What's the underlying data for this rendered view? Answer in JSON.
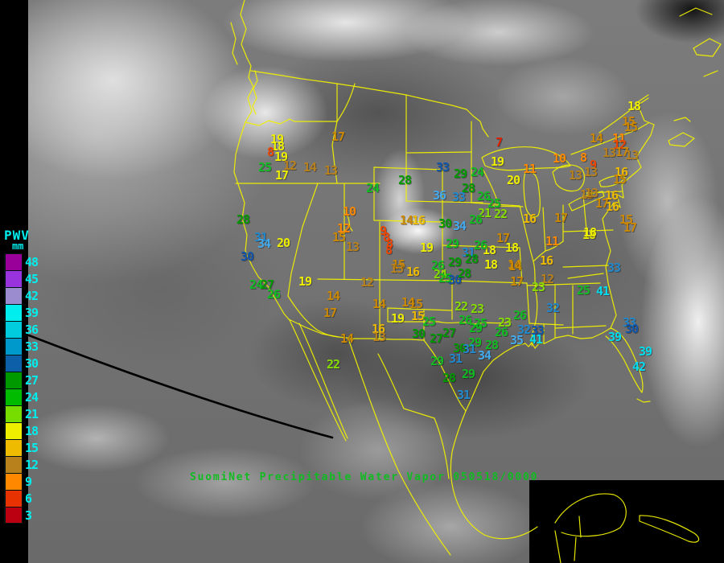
{
  "footer": {
    "title": "SuomiNet Precipitable Water Vapor 050518/0000"
  },
  "map": {
    "outline_color": "#F0F000",
    "limb_color": "#000000",
    "title_color": "#11BB22"
  },
  "legend": {
    "title": "PWV",
    "units": "mm",
    "text_color": "#00EEEE",
    "entries": [
      {
        "value": "48",
        "color": "#990099"
      },
      {
        "value": "45",
        "color": "#9933DD"
      },
      {
        "value": "42",
        "color": "#9A8CCE"
      },
      {
        "value": "39",
        "color": "#00EEEE"
      },
      {
        "value": "36",
        "color": "#00CCDD"
      },
      {
        "value": "33",
        "color": "#0099CC"
      },
      {
        "value": "30",
        "color": "#0D5FA8"
      },
      {
        "value": "27",
        "color": "#009900"
      },
      {
        "value": "24",
        "color": "#00BB00"
      },
      {
        "value": "21",
        "color": "#77DD00"
      },
      {
        "value": "18",
        "color": "#EEEE00"
      },
      {
        "value": "15",
        "color": "#EEBB00"
      },
      {
        "value": "12",
        "color": "#B8811C"
      },
      {
        "value": "9",
        "color": "#FF8800"
      },
      {
        "value": "6",
        "color": "#E83300"
      },
      {
        "value": "3",
        "color": "#BB0011"
      }
    ]
  },
  "palette": {
    "y": "#EEEE00",
    "a": "#EEBB00",
    "g2": "#CC8800",
    "d": "#B8811C",
    "o": "#FF8800",
    "r": "#EE4400",
    "R": "#DD2200",
    "c": "#00DDEE",
    "lb": "#44AAEE",
    "b": "#2288CC",
    "db": "#1155AA",
    "G": "#009900",
    "g": "#11BB22",
    "yg": "#88DD00"
  },
  "stations": [
    [
      19,
      344,
      173,
      "y"
    ],
    [
      18,
      345,
      182,
      "y"
    ],
    [
      8,
      336,
      189,
      "r"
    ],
    [
      19,
      349,
      195,
      "y"
    ],
    [
      25,
      329,
      208,
      "g"
    ],
    [
      17,
      350,
      218,
      "y"
    ],
    [
      12,
      360,
      206,
      "d"
    ],
    [
      14,
      385,
      208,
      "d"
    ],
    [
      13,
      411,
      212,
      "d"
    ],
    [
      17,
      420,
      170,
      "g2"
    ],
    [
      28,
      302,
      273,
      "G"
    ],
    [
      31,
      324,
      295,
      "b"
    ],
    [
      34,
      328,
      303,
      "lb"
    ],
    [
      30,
      307,
      319,
      "db"
    ],
    [
      20,
      352,
      302,
      "y"
    ],
    [
      24,
      318,
      354,
      "g"
    ],
    [
      27,
      332,
      354,
      "G"
    ],
    [
      26,
      340,
      366,
      "g"
    ],
    [
      19,
      379,
      350,
      "y"
    ],
    [
      10,
      434,
      263,
      "o"
    ],
    [
      12,
      427,
      284,
      "o"
    ],
    [
      15,
      421,
      295,
      "g2"
    ],
    [
      13,
      438,
      307,
      "d"
    ],
    [
      12,
      456,
      351,
      "d"
    ],
    [
      14,
      414,
      368,
      "g2"
    ],
    [
      17,
      410,
      389,
      "g2"
    ],
    [
      14,
      471,
      378,
      "g2"
    ],
    [
      15,
      517,
      378,
      "g2"
    ],
    [
      14,
      507,
      376,
      "g2"
    ],
    [
      22,
      414,
      453,
      "yg"
    ],
    [
      14,
      431,
      421,
      "g2"
    ],
    [
      16,
      470,
      409,
      "a"
    ],
    [
      13,
      471,
      419,
      "d"
    ],
    [
      9,
      476,
      287,
      "r"
    ],
    [
      8,
      480,
      295,
      "r"
    ],
    [
      8,
      484,
      303,
      "r"
    ],
    [
      8,
      483,
      311,
      "r"
    ],
    [
      19,
      530,
      308,
      "y"
    ],
    [
      16,
      513,
      338,
      "a"
    ],
    [
      15,
      495,
      329,
      "g2"
    ],
    [
      13,
      493,
      334,
      "d"
    ],
    [
      33,
      550,
      208,
      "db"
    ],
    [
      29,
      572,
      216,
      "G"
    ],
    [
      24,
      593,
      214,
      "g"
    ],
    [
      19,
      618,
      201,
      "y"
    ],
    [
      28,
      503,
      224,
      "G"
    ],
    [
      24,
      463,
      234,
      "g"
    ],
    [
      28,
      582,
      234,
      "G"
    ],
    [
      36,
      546,
      243,
      "lb"
    ],
    [
      33,
      570,
      245,
      "b"
    ],
    [
      26,
      601,
      244,
      "g"
    ],
    [
      25,
      614,
      253,
      "g"
    ],
    [
      21,
      602,
      265,
      "yg"
    ],
    [
      22,
      622,
      266,
      "yg"
    ],
    [
      14,
      505,
      274,
      "g2"
    ],
    [
      16,
      520,
      274,
      "a"
    ],
    [
      30,
      553,
      278,
      "G"
    ],
    [
      34,
      571,
      281,
      "lb"
    ],
    [
      26,
      591,
      273,
      "g"
    ],
    [
      20,
      638,
      224,
      "y"
    ],
    [
      16,
      658,
      272,
      "a"
    ],
    [
      17,
      697,
      271,
      "g2"
    ],
    [
      13,
      729,
      242,
      "d"
    ],
    [
      17,
      625,
      296,
      "g2"
    ],
    [
      11,
      686,
      300,
      "o"
    ],
    [
      18,
      608,
      311,
      "y"
    ],
    [
      18,
      636,
      308,
      "y"
    ],
    [
      18,
      610,
      329,
      "y"
    ],
    [
      14,
      639,
      329,
      "g2"
    ],
    [
      16,
      679,
      324,
      "a"
    ],
    [
      12,
      680,
      347,
      "d"
    ],
    [
      18,
      732,
      292,
      "y"
    ],
    [
      17,
      642,
      350,
      "g2"
    ],
    [
      23,
      669,
      357,
      "yg"
    ],
    [
      29,
      562,
      303,
      "g"
    ],
    [
      26,
      597,
      305,
      "g"
    ],
    [
      31,
      582,
      314,
      "b"
    ],
    [
      26,
      544,
      330,
      "g"
    ],
    [
      29,
      565,
      326,
      "G"
    ],
    [
      28,
      586,
      322,
      "G"
    ],
    [
      24,
      547,
      341,
      "yg"
    ],
    [
      25,
      553,
      346,
      "g"
    ],
    [
      30,
      565,
      348,
      "db"
    ],
    [
      28,
      577,
      340,
      "G"
    ],
    [
      23,
      593,
      384,
      "yg"
    ],
    [
      22,
      573,
      381,
      "yg"
    ],
    [
      19,
      494,
      396,
      "y"
    ],
    [
      15,
      519,
      393,
      "a"
    ],
    [
      25,
      533,
      400,
      "g"
    ],
    [
      26,
      578,
      398,
      "g"
    ],
    [
      25,
      597,
      402,
      "g"
    ],
    [
      23,
      627,
      401,
      "yg"
    ],
    [
      26,
      646,
      392,
      "g"
    ],
    [
      30,
      520,
      415,
      "G"
    ],
    [
      27,
      542,
      421,
      "G"
    ],
    [
      27,
      558,
      414,
      "G"
    ],
    [
      29,
      591,
      408,
      "g"
    ],
    [
      26,
      623,
      413,
      "g"
    ],
    [
      32,
      651,
      410,
      "b"
    ],
    [
      33,
      668,
      411,
      "db"
    ],
    [
      35,
      642,
      423,
      "lb"
    ],
    [
      41,
      666,
      422,
      "c"
    ],
    [
      29,
      590,
      426,
      "g"
    ],
    [
      30,
      571,
      433,
      "G"
    ],
    [
      31,
      583,
      434,
      "b"
    ],
    [
      28,
      611,
      429,
      "g"
    ],
    [
      34,
      602,
      442,
      "lb"
    ],
    [
      31,
      566,
      446,
      "b"
    ],
    [
      29,
      543,
      449,
      "g"
    ],
    [
      28,
      558,
      470,
      "G"
    ],
    [
      29,
      582,
      465,
      "g"
    ],
    [
      31,
      576,
      491,
      "b"
    ],
    [
      14,
      640,
      331,
      "g2"
    ],
    [
      33,
      763,
      333,
      "b"
    ],
    [
      25,
      725,
      361,
      "g"
    ],
    [
      41,
      749,
      362,
      "c"
    ],
    [
      32,
      687,
      383,
      "b"
    ],
    [
      33,
      782,
      401,
      "b"
    ],
    [
      30,
      785,
      409,
      "db"
    ],
    [
      39,
      764,
      419,
      "c"
    ],
    [
      39,
      802,
      437,
      "c"
    ],
    [
      42,
      794,
      456,
      "c"
    ],
    [
      7,
      620,
      177,
      "R"
    ],
    [
      10,
      695,
      197,
      "o"
    ],
    [
      8,
      725,
      196,
      "o"
    ],
    [
      9,
      737,
      205,
      "r"
    ],
    [
      11,
      658,
      210,
      "o"
    ],
    [
      13,
      715,
      218,
      "d"
    ],
    [
      13,
      734,
      214,
      "d"
    ],
    [
      18,
      788,
      132,
      "y"
    ],
    [
      15,
      781,
      151,
      "g2"
    ],
    [
      15,
      784,
      158,
      "g2"
    ],
    [
      14,
      741,
      172,
      "g2"
    ],
    [
      11,
      769,
      172,
      "o"
    ],
    [
      12,
      770,
      180,
      "r"
    ],
    [
      13,
      757,
      190,
      "d"
    ],
    [
      17,
      773,
      189,
      "g2"
    ],
    [
      13,
      785,
      193,
      "d"
    ],
    [
      16,
      772,
      214,
      "a"
    ],
    [
      15,
      770,
      223,
      "g2"
    ],
    [
      13,
      735,
      240,
      "d"
    ],
    [
      16,
      760,
      243,
      "a"
    ],
    [
      17,
      748,
      253,
      "g2"
    ],
    [
      16,
      761,
      257,
      "a"
    ],
    [
      15,
      778,
      273,
      "g2"
    ],
    [
      17,
      783,
      283,
      "g2"
    ],
    [
      18,
      733,
      289,
      "y"
    ]
  ]
}
